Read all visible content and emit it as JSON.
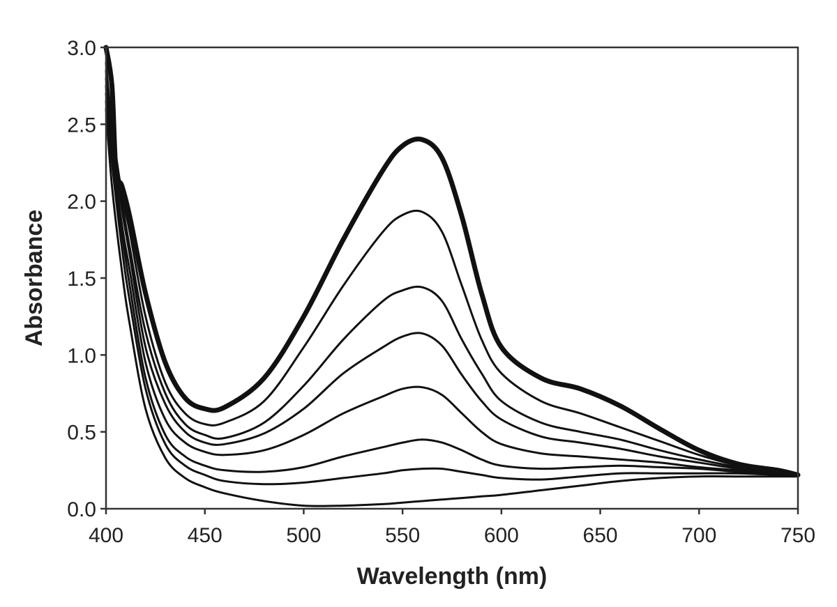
{
  "chart_data": {
    "type": "line",
    "title": "",
    "xlabel": "Wavelength (nm)",
    "ylabel": "Absorbance",
    "xlim": [
      400,
      750
    ],
    "ylim": [
      0,
      3
    ],
    "x_ticks": [
      "400",
      "450",
      "500",
      "550",
      "600",
      "650",
      "700",
      "750"
    ],
    "y_ticks": [
      "0.0",
      "0.5",
      "1.0",
      "1.5",
      "2.0",
      "2.5",
      "3.0"
    ],
    "grid": false,
    "line_color": "#111111",
    "series": [
      {
        "x": [
          400,
          403,
          405,
          408,
          412,
          420,
          430,
          440,
          450,
          460,
          480,
          500,
          520,
          540,
          550,
          560,
          570,
          580,
          590,
          600,
          620,
          640,
          660,
          680,
          700,
          720,
          740,
          750
        ],
        "y": [
          3.0,
          2.75,
          2.2,
          2.1,
          1.9,
          1.4,
          0.95,
          0.72,
          0.65,
          0.66,
          0.85,
          1.25,
          1.75,
          2.2,
          2.36,
          2.4,
          2.28,
          1.9,
          1.4,
          1.05,
          0.85,
          0.78,
          0.67,
          0.52,
          0.38,
          0.29,
          0.25,
          0.22
        ],
        "bold": true
      },
      {
        "x": [
          400,
          403,
          408,
          412,
          420,
          430,
          440,
          450,
          460,
          480,
          500,
          520,
          540,
          550,
          560,
          570,
          580,
          590,
          600,
          620,
          640,
          660,
          680,
          700,
          720,
          740,
          750
        ],
        "y": [
          2.9,
          2.5,
          2.05,
          1.8,
          1.25,
          0.82,
          0.62,
          0.55,
          0.56,
          0.7,
          1.05,
          1.45,
          1.8,
          1.91,
          1.93,
          1.8,
          1.45,
          1.1,
          0.88,
          0.7,
          0.62,
          0.53,
          0.44,
          0.35,
          0.28,
          0.24,
          0.22
        ]
      },
      {
        "x": [
          400,
          403,
          408,
          412,
          420,
          430,
          440,
          450,
          460,
          480,
          500,
          520,
          540,
          550,
          560,
          570,
          580,
          590,
          600,
          620,
          640,
          660,
          680,
          700,
          720,
          740,
          750
        ],
        "y": [
          2.85,
          2.45,
          2.0,
          1.7,
          1.15,
          0.75,
          0.55,
          0.48,
          0.46,
          0.56,
          0.8,
          1.1,
          1.35,
          1.42,
          1.44,
          1.35,
          1.1,
          0.88,
          0.7,
          0.56,
          0.5,
          0.45,
          0.38,
          0.32,
          0.27,
          0.23,
          0.22
        ]
      },
      {
        "x": [
          400,
          403,
          408,
          412,
          420,
          430,
          440,
          450,
          460,
          480,
          500,
          520,
          540,
          550,
          560,
          570,
          580,
          590,
          600,
          620,
          640,
          660,
          680,
          700,
          720,
          740,
          750
        ],
        "y": [
          2.8,
          2.4,
          1.95,
          1.65,
          1.05,
          0.68,
          0.5,
          0.43,
          0.42,
          0.49,
          0.65,
          0.88,
          1.05,
          1.12,
          1.14,
          1.06,
          0.87,
          0.7,
          0.58,
          0.47,
          0.43,
          0.39,
          0.34,
          0.3,
          0.26,
          0.23,
          0.22
        ]
      },
      {
        "x": [
          400,
          403,
          408,
          412,
          420,
          430,
          440,
          450,
          460,
          480,
          500,
          520,
          540,
          550,
          560,
          570,
          580,
          590,
          600,
          620,
          640,
          660,
          680,
          700,
          720,
          740,
          750
        ],
        "y": [
          2.75,
          2.35,
          1.85,
          1.55,
          0.95,
          0.58,
          0.43,
          0.37,
          0.35,
          0.38,
          0.48,
          0.62,
          0.73,
          0.78,
          0.79,
          0.74,
          0.62,
          0.5,
          0.42,
          0.36,
          0.34,
          0.32,
          0.3,
          0.27,
          0.25,
          0.23,
          0.22
        ]
      },
      {
        "x": [
          400,
          403,
          408,
          412,
          420,
          430,
          440,
          450,
          460,
          480,
          500,
          520,
          540,
          550,
          560,
          570,
          580,
          590,
          600,
          620,
          640,
          660,
          680,
          700,
          720,
          740,
          750
        ],
        "y": [
          2.7,
          2.3,
          1.8,
          1.45,
          0.85,
          0.48,
          0.34,
          0.28,
          0.25,
          0.24,
          0.27,
          0.34,
          0.4,
          0.43,
          0.45,
          0.43,
          0.38,
          0.32,
          0.28,
          0.26,
          0.27,
          0.28,
          0.27,
          0.26,
          0.24,
          0.23,
          0.22
        ]
      },
      {
        "x": [
          400,
          403,
          408,
          412,
          420,
          430,
          440,
          450,
          460,
          480,
          500,
          520,
          540,
          550,
          560,
          570,
          580,
          590,
          600,
          620,
          640,
          660,
          680,
          700,
          720,
          740,
          750
        ],
        "y": [
          2.65,
          2.25,
          1.7,
          1.35,
          0.78,
          0.42,
          0.28,
          0.22,
          0.18,
          0.16,
          0.17,
          0.2,
          0.23,
          0.25,
          0.26,
          0.26,
          0.24,
          0.22,
          0.2,
          0.19,
          0.21,
          0.23,
          0.23,
          0.23,
          0.23,
          0.22,
          0.22
        ]
      },
      {
        "x": [
          400,
          403,
          408,
          412,
          420,
          430,
          440,
          450,
          460,
          480,
          500,
          520,
          540,
          550,
          560,
          570,
          580,
          590,
          600,
          620,
          640,
          660,
          680,
          700,
          720,
          740,
          750
        ],
        "y": [
          2.6,
          2.1,
          1.55,
          1.2,
          0.65,
          0.33,
          0.2,
          0.14,
          0.1,
          0.05,
          0.02,
          0.02,
          0.03,
          0.04,
          0.05,
          0.06,
          0.07,
          0.08,
          0.09,
          0.12,
          0.15,
          0.18,
          0.2,
          0.21,
          0.21,
          0.21,
          0.21
        ]
      }
    ]
  }
}
